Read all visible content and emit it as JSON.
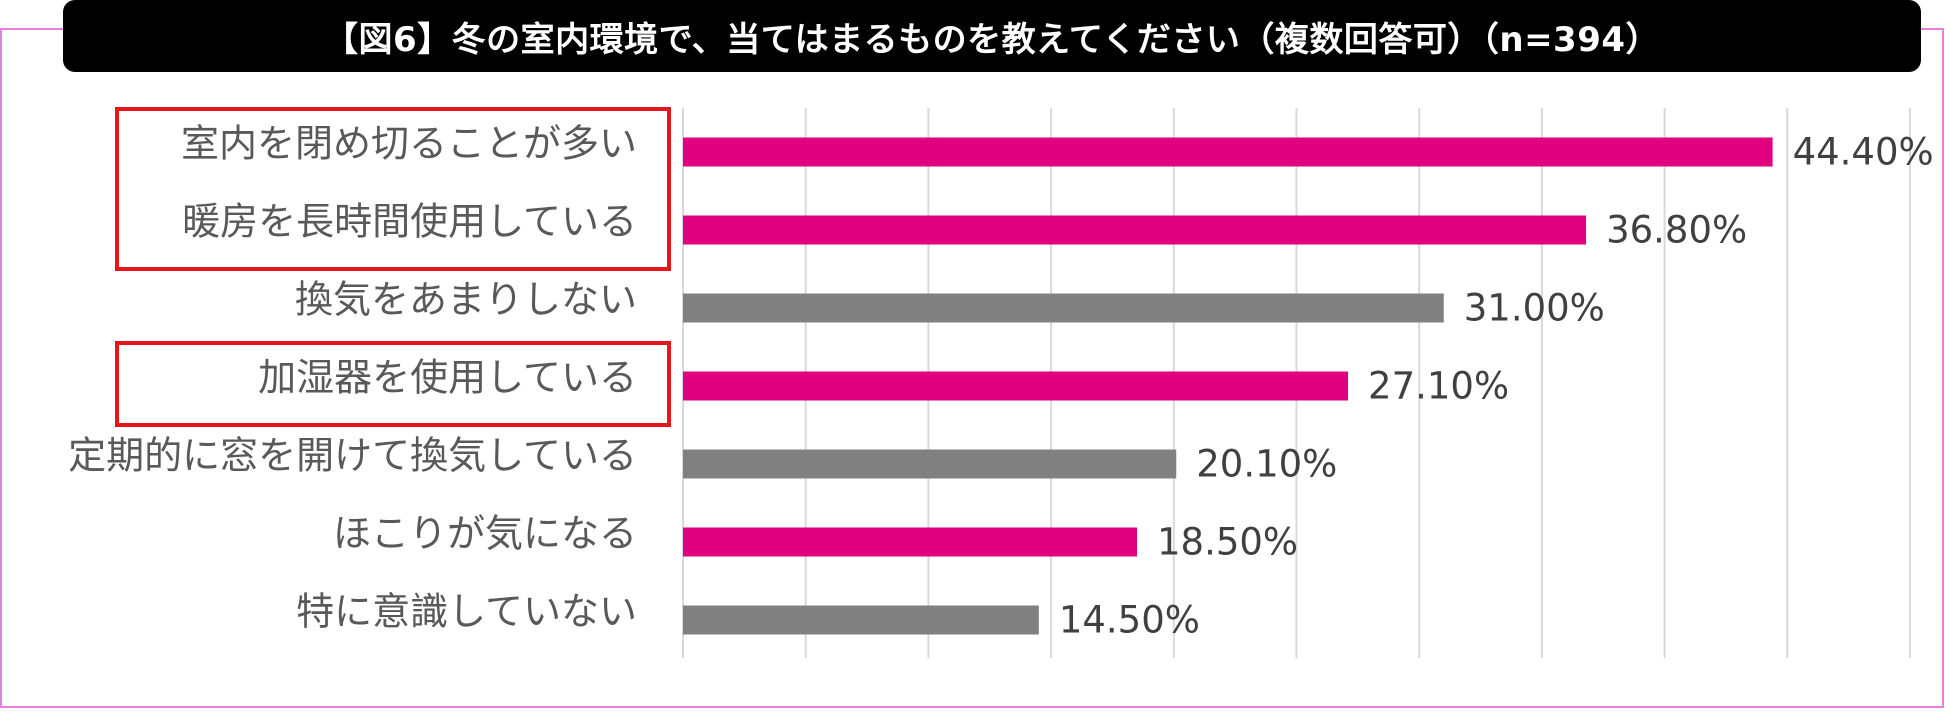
{
  "chart_data": {
    "type": "bar",
    "orientation": "horizontal",
    "title": "【図6】冬の室内環境で、当てはまるものを教えてください（複数回答可）（n=394）",
    "categories": [
      "室内を閉め切ることが多い",
      "暖房を長時間使用している",
      "換気をあまりしない",
      "加湿器を使用している",
      "定期的に窓を開けて換気している",
      "ほこりが気になる",
      "特に意識していない"
    ],
    "values": [
      44.4,
      36.8,
      31.0,
      27.1,
      20.1,
      18.5,
      14.5
    ],
    "value_labels": [
      "44.40%",
      "36.80%",
      "31.00%",
      "27.10%",
      "20.10%",
      "18.50%",
      "14.50%"
    ],
    "highlighted": [
      true,
      true,
      false,
      true,
      false,
      true,
      false
    ],
    "highlight_boxes": [
      [
        0,
        1
      ],
      [
        3,
        3
      ]
    ],
    "xlim": [
      0,
      50
    ],
    "grid": true,
    "xlabel": "",
    "ylabel": "",
    "colors": {
      "highlight": "#e0007f",
      "normal": "#808080",
      "box": "#e8141c",
      "frame": "#e77fe0",
      "title_bg": "#000000",
      "title_text": "#ffffff"
    }
  }
}
